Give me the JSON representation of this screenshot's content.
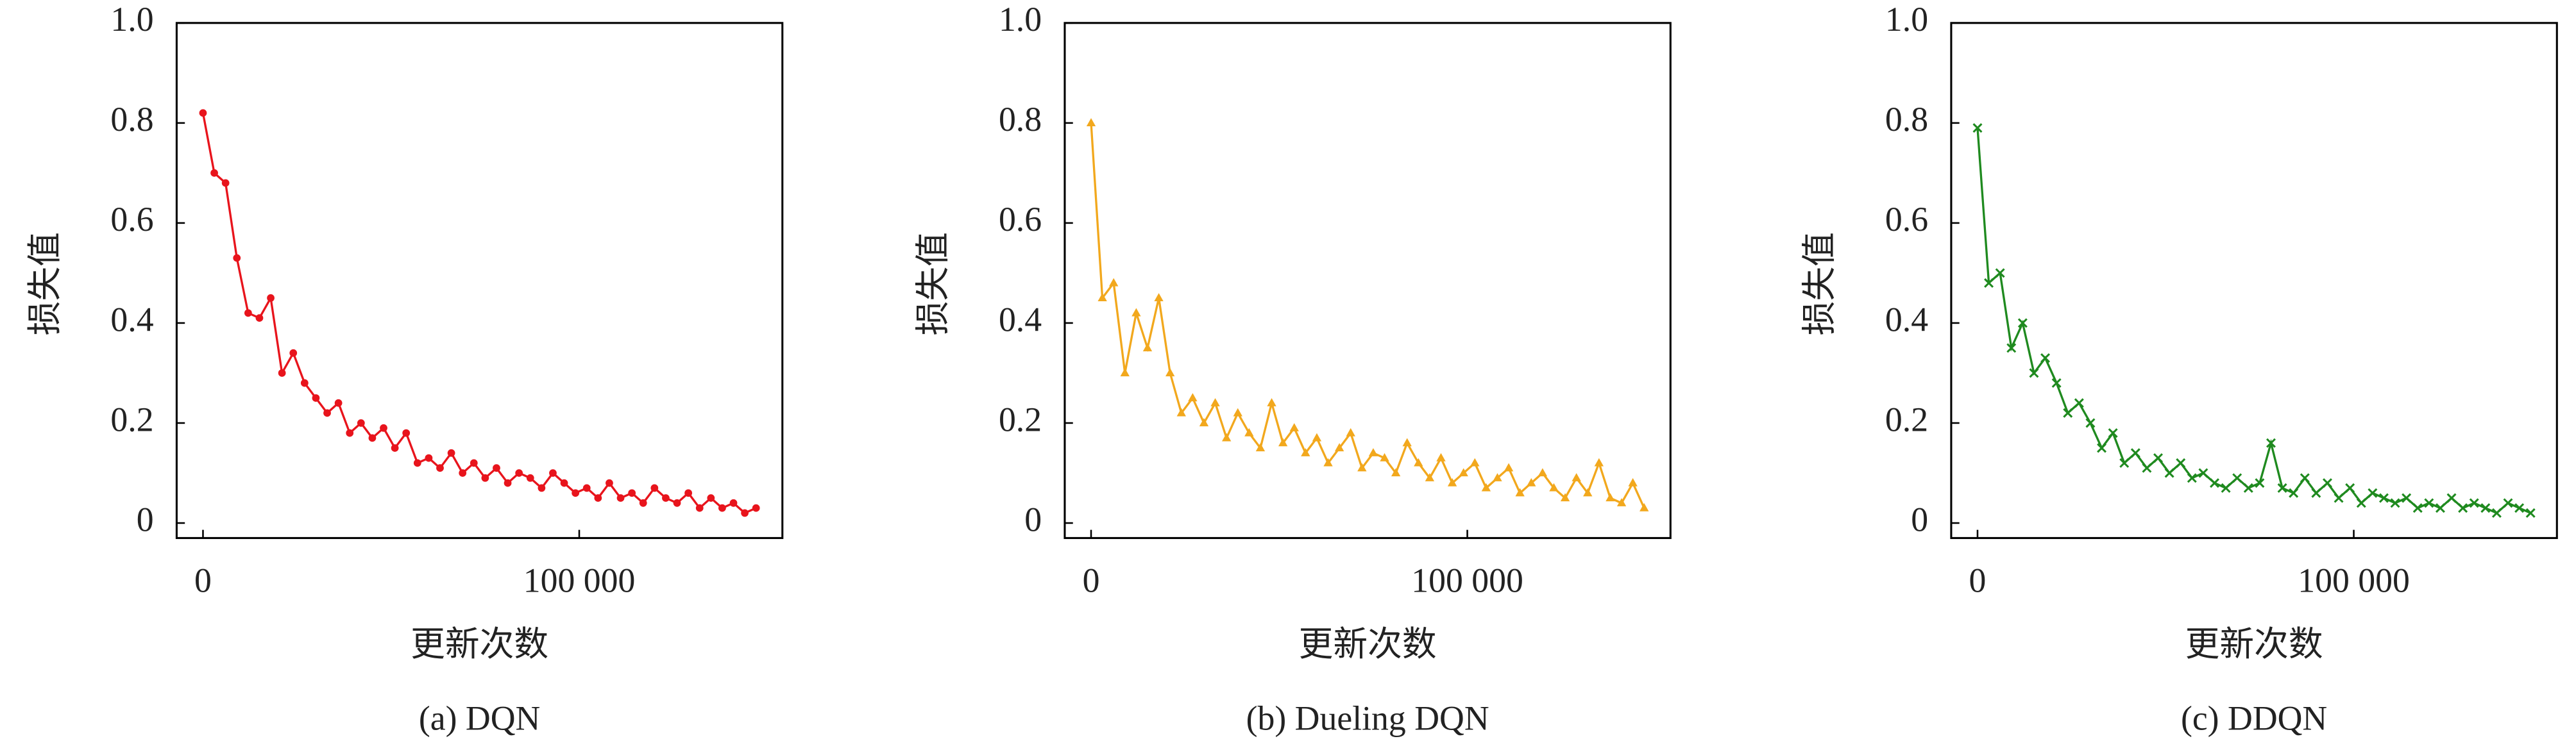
{
  "chart_data": [
    {
      "type": "line",
      "title": "(a) DQN",
      "xlabel": "更新次数",
      "ylabel": "损失值",
      "color": "#e8141c",
      "marker": "circle",
      "xlim": [
        -7000,
        154000
      ],
      "ylim": [
        -0.03,
        1.0
      ],
      "xticks": [
        0,
        {
          "value": 100000,
          "label": "100 000"
        }
      ],
      "yticks": [
        0,
        0.2,
        0.4,
        0.6,
        0.8,
        {
          "value": 1,
          "label": "1.0"
        }
      ],
      "x": [
        0,
        3000,
        6000,
        9000,
        12000,
        15000,
        18000,
        21000,
        24000,
        27000,
        30000,
        33000,
        36000,
        39000,
        42000,
        45000,
        48000,
        51000,
        54000,
        57000,
        60000,
        63000,
        66000,
        69000,
        72000,
        75000,
        78000,
        81000,
        84000,
        87000,
        90000,
        93000,
        96000,
        99000,
        102000,
        105000,
        108000,
        111000,
        114000,
        117000,
        120000,
        123000,
        126000,
        129000,
        132000,
        135000,
        138000,
        141000,
        144000,
        147000
      ],
      "values": [
        0.82,
        0.7,
        0.68,
        0.53,
        0.42,
        0.41,
        0.45,
        0.3,
        0.34,
        0.28,
        0.25,
        0.22,
        0.24,
        0.18,
        0.2,
        0.17,
        0.19,
        0.15,
        0.18,
        0.12,
        0.13,
        0.11,
        0.14,
        0.1,
        0.12,
        0.09,
        0.11,
        0.08,
        0.1,
        0.09,
        0.07,
        0.1,
        0.08,
        0.06,
        0.07,
        0.05,
        0.08,
        0.05,
        0.06,
        0.04,
        0.07,
        0.05,
        0.04,
        0.06,
        0.03,
        0.05,
        0.03,
        0.04,
        0.02,
        0.03
      ]
    },
    {
      "type": "line",
      "title": "(b) Dueling DQN",
      "xlabel": "更新次数",
      "ylabel": "损失值",
      "color": "#f2a81d",
      "marker": "triangle",
      "xlim": [
        -7000,
        154000
      ],
      "ylim": [
        -0.03,
        1.0
      ],
      "xticks": [
        0,
        {
          "value": 100000,
          "label": "100 000"
        }
      ],
      "yticks": [
        0,
        0.2,
        0.4,
        0.6,
        0.8,
        {
          "value": 1,
          "label": "1.0"
        }
      ],
      "x": [
        0,
        3000,
        6000,
        9000,
        12000,
        15000,
        18000,
        21000,
        24000,
        27000,
        30000,
        33000,
        36000,
        39000,
        42000,
        45000,
        48000,
        51000,
        54000,
        57000,
        60000,
        63000,
        66000,
        69000,
        72000,
        75000,
        78000,
        81000,
        84000,
        87000,
        90000,
        93000,
        96000,
        99000,
        102000,
        105000,
        108000,
        111000,
        114000,
        117000,
        120000,
        123000,
        126000,
        129000,
        132000,
        135000,
        138000,
        141000,
        144000,
        147000
      ],
      "values": [
        0.8,
        0.45,
        0.48,
        0.3,
        0.42,
        0.35,
        0.45,
        0.3,
        0.22,
        0.25,
        0.2,
        0.24,
        0.17,
        0.22,
        0.18,
        0.15,
        0.24,
        0.16,
        0.19,
        0.14,
        0.17,
        0.12,
        0.15,
        0.18,
        0.11,
        0.14,
        0.13,
        0.1,
        0.16,
        0.12,
        0.09,
        0.13,
        0.08,
        0.1,
        0.12,
        0.07,
        0.09,
        0.11,
        0.06,
        0.08,
        0.1,
        0.07,
        0.05,
        0.09,
        0.06,
        0.12,
        0.05,
        0.04,
        0.08,
        0.03
      ]
    },
    {
      "type": "line",
      "title": "(c) DDQN",
      "xlabel": "更新次数",
      "ylabel": "损失值",
      "color": "#1f8a1f",
      "marker": "cross",
      "xlim": [
        -7000,
        154000
      ],
      "ylim": [
        -0.03,
        1.0
      ],
      "xticks": [
        0,
        {
          "value": 100000,
          "label": "100 000"
        }
      ],
      "yticks": [
        0,
        0.2,
        0.4,
        0.6,
        0.8,
        {
          "value": 1,
          "label": "1.0"
        }
      ],
      "x": [
        0,
        3000,
        6000,
        9000,
        12000,
        15000,
        18000,
        21000,
        24000,
        27000,
        30000,
        33000,
        36000,
        39000,
        42000,
        45000,
        48000,
        51000,
        54000,
        57000,
        60000,
        63000,
        66000,
        69000,
        72000,
        75000,
        78000,
        81000,
        84000,
        87000,
        90000,
        93000,
        96000,
        99000,
        102000,
        105000,
        108000,
        111000,
        114000,
        117000,
        120000,
        123000,
        126000,
        129000,
        132000,
        135000,
        138000,
        141000,
        144000,
        147000
      ],
      "values": [
        0.79,
        0.48,
        0.5,
        0.35,
        0.4,
        0.3,
        0.33,
        0.28,
        0.22,
        0.24,
        0.2,
        0.15,
        0.18,
        0.12,
        0.14,
        0.11,
        0.13,
        0.1,
        0.12,
        0.09,
        0.1,
        0.08,
        0.07,
        0.09,
        0.07,
        0.08,
        0.16,
        0.07,
        0.06,
        0.09,
        0.06,
        0.08,
        0.05,
        0.07,
        0.04,
        0.06,
        0.05,
        0.04,
        0.05,
        0.03,
        0.04,
        0.03,
        0.05,
        0.03,
        0.04,
        0.03,
        0.02,
        0.04,
        0.03,
        0.02
      ]
    }
  ]
}
